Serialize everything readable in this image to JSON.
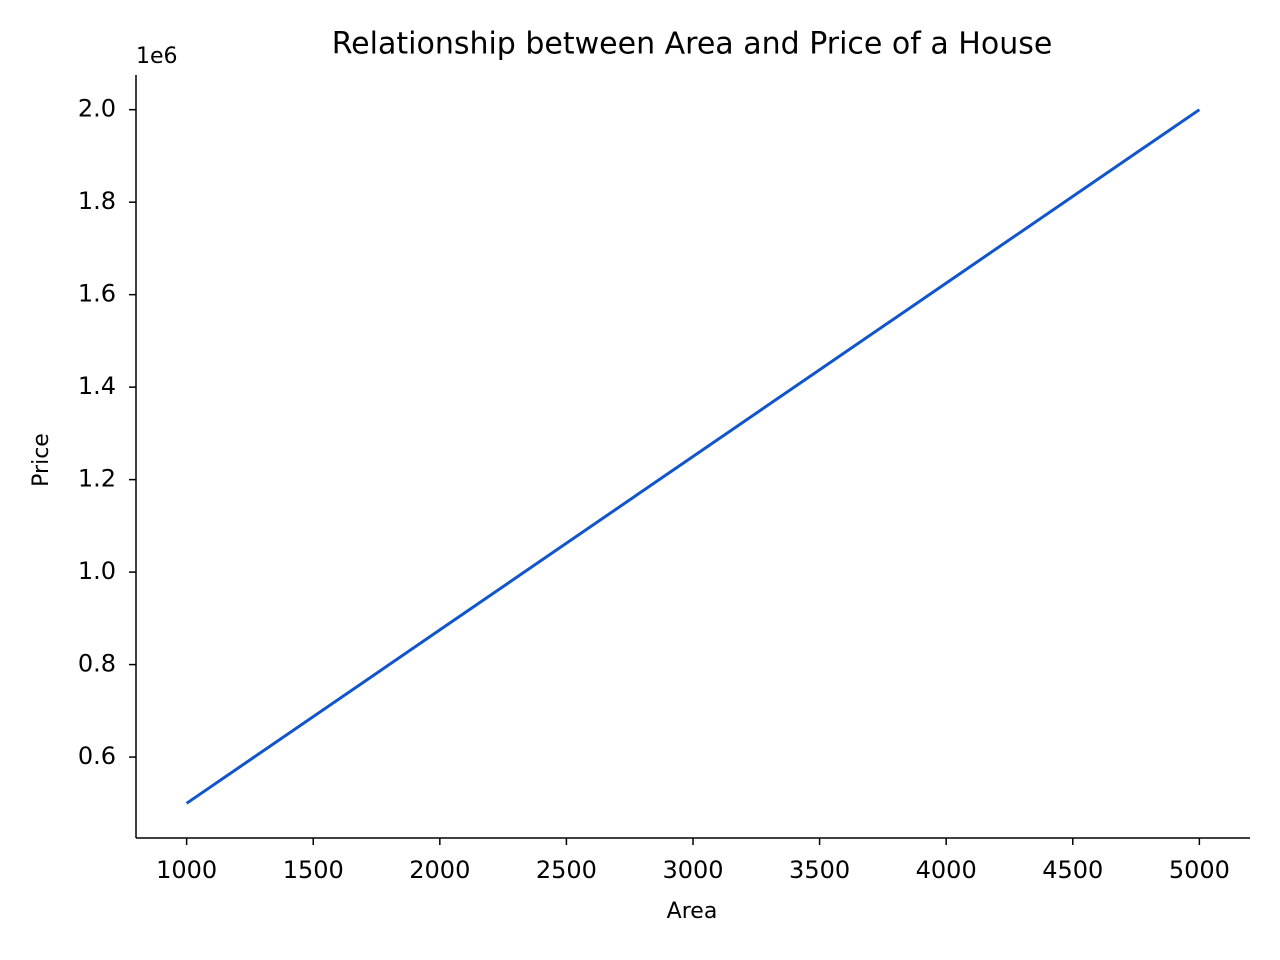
{
  "chart_data": {
    "type": "line",
    "title": "Relationship between Area and Price of a House",
    "x_label": "Area",
    "y_label": "Price",
    "y_offset_label": "1e6",
    "x": [
      1000,
      2000,
      3000,
      4000,
      5000
    ],
    "series": [
      {
        "name": "Price",
        "color": "#1155cc",
        "values": [
          500000,
          875000,
          1250000,
          1625000,
          2000000
        ]
      }
    ],
    "xlim": [
      800,
      5200
    ],
    "xticks": [
      1000,
      1500,
      2000,
      2500,
      3000,
      3500,
      4000,
      4500,
      5000
    ],
    "ylim": [
      425000,
      2075000
    ],
    "yticks": [
      {
        "value": 600000,
        "label": "0.6"
      },
      {
        "value": 800000,
        "label": "0.8"
      },
      {
        "value": 1000000,
        "label": "1.0"
      },
      {
        "value": 1200000,
        "label": "1.2"
      },
      {
        "value": 1400000,
        "label": "1.4"
      },
      {
        "value": 1600000,
        "label": "1.6"
      },
      {
        "value": 1800000,
        "label": "1.8"
      },
      {
        "value": 2000000,
        "label": "2.0"
      }
    ],
    "grid": false
  }
}
